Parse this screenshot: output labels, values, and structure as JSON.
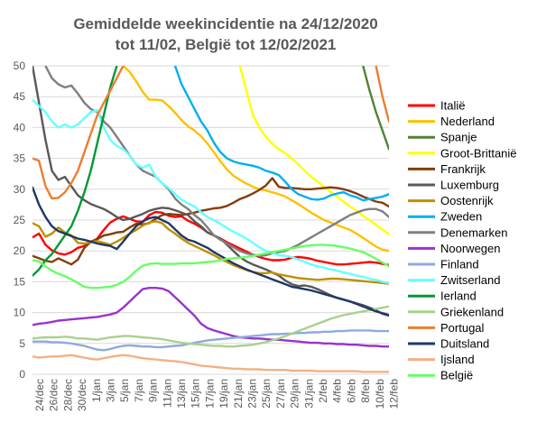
{
  "chart_data": {
    "type": "line",
    "title_line1": "Gemiddelde weekincidentie  na 24/12/2020",
    "title_line2": "tot 11/02, België tot 12/02/2021",
    "ylim": [
      0,
      50
    ],
    "y_ticks": [
      0,
      5,
      10,
      15,
      20,
      25,
      30,
      35,
      40,
      45,
      50
    ],
    "x_tick_labels": [
      "24/dec",
      "26/dec",
      "28/dec",
      "30/dec",
      "1/jan",
      "3/jan",
      "5/jan",
      "7/jan",
      "9/jan",
      "11/jan",
      "13/jan",
      "15/jan",
      "17/jan",
      "19/jan",
      "21/jan",
      "23/jan",
      "25/jan",
      "27/jan",
      "29/jan",
      "31/jan",
      "2/feb",
      "4/feb",
      "6/feb",
      "8/feb",
      "10/feb",
      "12/feb"
    ],
    "grid": "horizontal",
    "legend_position": "right",
    "series": [
      {
        "name": "Italië",
        "color": "#ff0000",
        "values": [
          22.2,
          22.8,
          21,
          20.1,
          19.6,
          19.4,
          19.8,
          20.5,
          20.8,
          21.4,
          22,
          23.4,
          24.6,
          25.2,
          25.6,
          25.2,
          24.8,
          24.7,
          25.8,
          26.3,
          26.2,
          25.7,
          25.5,
          25.6,
          24.9,
          24.4,
          23.8,
          23,
          22.5,
          22,
          21.4,
          20.9,
          20.4,
          19.9,
          19.4,
          19,
          18.7,
          18.5,
          18.5,
          18.6,
          18.9,
          19,
          18.9,
          18.7,
          18.4,
          18.2,
          18,
          17.8,
          17.8,
          17.9,
          18,
          18.1,
          18.2,
          18.1,
          17.9,
          17.7
        ]
      },
      {
        "name": "Nederland",
        "color": "#ffc000",
        "values": [
          null,
          null,
          null,
          null,
          null,
          null,
          null,
          null,
          null,
          null,
          null,
          null,
          null,
          null,
          50,
          49,
          47.5,
          45.8,
          44.5,
          44.5,
          44.4,
          43.5,
          42.4,
          41.2,
          40.2,
          39.5,
          38.6,
          37.4,
          36,
          34.5,
          33.2,
          32.2,
          31.5,
          30.9,
          30.4,
          30,
          29.8,
          29.5,
          29.2,
          28.8,
          28.2,
          27.6,
          26.9,
          26.2,
          25.6,
          25,
          24.6,
          24.2,
          23.8,
          23.4,
          22.8,
          22.1,
          21.4,
          20.7,
          20.2,
          20
        ]
      },
      {
        "name": "Spanje",
        "color": "#548235",
        "values": [
          null,
          null,
          null,
          null,
          null,
          null,
          null,
          null,
          null,
          null,
          null,
          null,
          null,
          null,
          null,
          null,
          null,
          null,
          null,
          null,
          null,
          null,
          null,
          null,
          null,
          null,
          null,
          null,
          null,
          null,
          null,
          null,
          null,
          null,
          null,
          null,
          null,
          null,
          null,
          null,
          null,
          null,
          null,
          null,
          null,
          null,
          null,
          null,
          null,
          null,
          null,
          50,
          46,
          42.5,
          39.5,
          36.5
        ]
      },
      {
        "name": "Groot-Brittanië",
        "color": "#ffff00",
        "values": [
          null,
          null,
          null,
          null,
          null,
          null,
          null,
          null,
          null,
          null,
          null,
          null,
          null,
          null,
          null,
          null,
          null,
          null,
          null,
          null,
          null,
          null,
          null,
          null,
          null,
          null,
          null,
          null,
          null,
          null,
          null,
          null,
          50,
          46,
          42,
          40,
          38.5,
          37.4,
          36.5,
          35.8,
          35,
          34,
          33,
          32,
          31.2,
          30.4,
          29.6,
          28.8,
          28,
          27.2,
          26.5,
          25.7,
          25,
          24.2,
          23.5,
          22.7
        ]
      },
      {
        "name": "Frankrijk",
        "color": "#843c0c",
        "values": [
          19.2,
          18.8,
          18.4,
          18.2,
          18.8,
          18.3,
          17.8,
          18.6,
          20.5,
          21.5,
          21.9,
          22.5,
          22.7,
          23,
          23.1,
          23.8,
          24.4,
          24.3,
          24.5,
          25.2,
          25.8,
          26,
          25.9,
          25.8,
          26,
          26.2,
          26.5,
          26.7,
          26.9,
          27,
          27.3,
          27.8,
          28.4,
          28.8,
          29.3,
          29.9,
          30.6,
          31.8,
          30.4,
          30.2,
          30.2,
          30.1,
          30,
          30,
          30.1,
          30.2,
          30.3,
          30.2,
          30,
          29.7,
          29.3,
          28.8,
          28.4,
          28,
          27.8,
          27.2
        ]
      },
      {
        "name": "Luxemburg",
        "color": "#595959",
        "values": [
          50,
          44,
          38,
          33,
          31.5,
          32,
          30.5,
          29,
          28.2,
          27.6,
          27.2,
          26.8,
          26.2,
          25.5,
          25,
          25.2,
          25.6,
          26,
          26.5,
          26.8,
          27,
          26.9,
          26.6,
          26.2,
          25.8,
          24.8,
          24,
          23,
          22.5,
          22,
          21,
          20,
          19,
          18.3,
          17.8,
          17.4,
          17,
          16.5,
          16,
          15.2,
          14.6,
          14.3,
          14.4,
          14.2,
          13.8,
          13.3,
          12.8,
          12.4,
          12.1,
          11.8,
          11.5,
          11.2,
          10.8,
          10.4,
          9.8,
          9.5
        ]
      },
      {
        "name": "Oostenrijk",
        "color": "#bf9000",
        "values": [
          24.5,
          24,
          22.3,
          22.8,
          23.8,
          23,
          22.5,
          21.3,
          21.2,
          21.4,
          21.6,
          21.3,
          21,
          21.5,
          22.1,
          22.8,
          23.4,
          24.1,
          24.6,
          24.8,
          24.5,
          23.5,
          22.8,
          22,
          21.3,
          20.8,
          20.3,
          19.8,
          19.3,
          18.7,
          18.2,
          17.7,
          17.3,
          16.9,
          16.6,
          16.4,
          16.4,
          16.5,
          16.2,
          16,
          15.8,
          15.6,
          15.5,
          15.4,
          15.3,
          15.4,
          15.5,
          15.5,
          15.4,
          15.3,
          15.2,
          15.1,
          15,
          14.9,
          14.8,
          14.7
        ]
      },
      {
        "name": "Zweden",
        "color": "#00b0f0",
        "values": [
          null,
          null,
          null,
          null,
          null,
          null,
          null,
          null,
          null,
          null,
          null,
          null,
          null,
          null,
          null,
          null,
          null,
          null,
          null,
          null,
          null,
          null,
          50,
          47,
          45,
          43,
          41,
          39.5,
          37.5,
          36,
          35,
          34.5,
          34.2,
          34,
          33.8,
          33.5,
          33,
          32.7,
          32.3,
          31.2,
          30,
          29.2,
          28.8,
          28.4,
          28.3,
          28.5,
          29,
          29.3,
          29.5,
          29,
          28.7,
          28.2,
          28.4,
          28.6,
          28.8,
          29.2
        ]
      },
      {
        "name": "Denemarken",
        "color": "#7f7f7f",
        "values": [
          null,
          null,
          50,
          48,
          47,
          46.5,
          46.8,
          45.5,
          44,
          43,
          42.5,
          41,
          40,
          38.5,
          37,
          35.5,
          34,
          33,
          32.5,
          32,
          31,
          30,
          28.5,
          27.5,
          26.8,
          25.8,
          25,
          23.8,
          22.5,
          21.8,
          21.2,
          20.6,
          20,
          19.6,
          19.4,
          19.2,
          19.3,
          19.6,
          19.8,
          20,
          20.5,
          21,
          21.6,
          22.2,
          22.8,
          23.4,
          24,
          24.6,
          25.2,
          25.8,
          26.2,
          26.6,
          26.8,
          26.8,
          26.4,
          25.5
        ]
      },
      {
        "name": "Noorwegen",
        "color": "#9933cc",
        "values": [
          8,
          8.2,
          8.3,
          8.5,
          8.7,
          8.8,
          8.9,
          9,
          9.1,
          9.2,
          9.3,
          9.5,
          9.7,
          10,
          10.8,
          11.8,
          12.8,
          13.8,
          14,
          14,
          13.9,
          13.5,
          12.5,
          11.5,
          10.5,
          9.5,
          8.2,
          7.5,
          7.1,
          6.8,
          6.5,
          6.2,
          6,
          5.9,
          5.8,
          5.8,
          5.7,
          5.6,
          5.6,
          5.5,
          5.4,
          5.3,
          5.2,
          5.1,
          5.1,
          5,
          5,
          4.9,
          4.9,
          4.8,
          4.8,
          4.7,
          4.6,
          4.6,
          4.5,
          4.5
        ]
      },
      {
        "name": "Finland",
        "color": "#8faadc",
        "values": [
          5.3,
          5.3,
          5.3,
          5.2,
          5.2,
          5.1,
          5,
          4.8,
          4.6,
          4.3,
          4,
          3.9,
          4.1,
          4.4,
          4.6,
          4.7,
          4.6,
          4.5,
          4.5,
          4.4,
          4.4,
          4.5,
          4.6,
          4.7,
          4.9,
          5.1,
          5.3,
          5.5,
          5.6,
          5.7,
          5.8,
          5.9,
          6,
          6.1,
          6.2,
          6.3,
          6.4,
          6.5,
          6.5,
          6.6,
          6.6,
          6.7,
          6.7,
          6.8,
          6.8,
          6.9,
          6.9,
          7,
          7,
          7.1,
          7.1,
          7.1,
          7.1,
          7,
          7,
          7
        ]
      },
      {
        "name": "Zwitserland",
        "color": "#66ffff",
        "values": [
          44.5,
          43.5,
          42.5,
          41,
          40,
          40.5,
          40,
          40.5,
          41.5,
          42.5,
          42.8,
          40,
          38,
          37,
          36.5,
          35.5,
          34,
          33.5,
          34,
          32,
          31,
          30.2,
          29.2,
          28.3,
          27.7,
          27.2,
          26.3,
          25.5,
          25,
          24.4,
          23.7,
          23.1,
          22.6,
          22,
          21.3,
          20.6,
          20,
          19.7,
          19.3,
          19.2,
          19,
          18.6,
          18.2,
          17.8,
          17.5,
          17.3,
          17,
          16.8,
          16.5,
          16.3,
          16,
          15.8,
          15.5,
          15.3,
          15,
          14.8
        ]
      },
      {
        "name": "Ierland",
        "color": "#009933",
        "values": [
          16,
          17,
          18.5,
          19.5,
          21,
          22.5,
          24,
          26.5,
          29.5,
          33,
          37.5,
          42,
          46.5,
          50,
          null,
          null,
          null,
          null,
          null,
          null,
          null,
          null,
          null,
          null,
          null,
          null,
          null,
          null,
          null,
          null,
          null,
          null,
          null,
          null,
          null,
          null,
          null,
          null,
          null,
          null,
          null,
          null,
          null,
          null,
          null,
          null,
          null,
          null,
          null,
          null,
          null,
          null,
          null,
          null,
          null,
          null
        ]
      },
      {
        "name": "Griekenland",
        "color": "#a9d18e",
        "values": [
          5.8,
          5.9,
          6,
          6,
          6,
          6.1,
          6,
          5.8,
          5.8,
          5.7,
          5.6,
          5.8,
          6,
          6.1,
          6.2,
          6.2,
          6.1,
          6,
          5.9,
          5.8,
          5.7,
          5.5,
          5.3,
          5.1,
          5,
          4.9,
          4.8,
          4.7,
          4.6,
          4.6,
          4.5,
          4.5,
          4.6,
          4.7,
          4.8,
          5,
          5.2,
          5.5,
          5.8,
          6.2,
          6.6,
          7,
          7.4,
          7.8,
          8.2,
          8.6,
          9,
          9.3,
          9.6,
          9.8,
          10,
          10.2,
          10.4,
          10.6,
          10.8,
          11
        ]
      },
      {
        "name": "Portugal",
        "color": "#ed7d31",
        "values": [
          35,
          34.6,
          30.5,
          28.5,
          28.6,
          29.5,
          31,
          33,
          36,
          39,
          42,
          44,
          46,
          48,
          50,
          null,
          null,
          null,
          null,
          null,
          null,
          null,
          null,
          null,
          null,
          null,
          null,
          null,
          null,
          null,
          null,
          null,
          null,
          null,
          null,
          null,
          null,
          null,
          null,
          null,
          null,
          null,
          null,
          null,
          null,
          null,
          null,
          null,
          null,
          null,
          null,
          null,
          null,
          50,
          45,
          41
        ]
      },
      {
        "name": "Duitsland",
        "color": "#1f3864",
        "values": [
          30.3,
          27.5,
          25.5,
          24,
          23.2,
          22.8,
          22.4,
          22,
          21.8,
          21.5,
          21.2,
          21,
          20.8,
          20.3,
          21.5,
          22.8,
          24,
          24.8,
          25.3,
          25.5,
          25,
          24.5,
          23.5,
          22.5,
          21.8,
          21.5,
          21,
          20.5,
          19.8,
          19.2,
          18.6,
          18,
          17.5,
          17,
          16.6,
          16.2,
          15.8,
          15.4,
          15,
          14.6,
          14.2,
          14,
          13.8,
          13.6,
          13.3,
          13,
          12.7,
          12.4,
          12.1,
          11.8,
          11.4,
          11,
          10.6,
          10.2,
          9.9,
          9.6
        ]
      },
      {
        "name": "Ijsland",
        "color": "#f4b183",
        "values": [
          2.9,
          2.7,
          2.8,
          2.9,
          2.9,
          3,
          3.1,
          2.9,
          2.7,
          2.5,
          2.4,
          2.6,
          2.8,
          3,
          3.1,
          3,
          2.8,
          2.6,
          2.5,
          2.4,
          2.3,
          2.2,
          2.1,
          2,
          1.8,
          1.6,
          1.4,
          1.3,
          1.2,
          1.1,
          1,
          0.9,
          0.9,
          0.8,
          0.8,
          0.8,
          0.7,
          0.7,
          0.7,
          0.7,
          0.6,
          0.6,
          0.6,
          0.6,
          0.5,
          0.5,
          0.5,
          0.5,
          0.5,
          0.5,
          0.5,
          0.4,
          0.4,
          0.4,
          0.4,
          0.4
        ]
      },
      {
        "name": "België",
        "color": "#66ff66",
        "values": [
          18.5,
          18.3,
          17.5,
          16.8,
          16.3,
          15.9,
          15.4,
          14.8,
          14.2,
          14,
          14,
          14.1,
          14.2,
          14.5,
          15,
          15.8,
          16.8,
          17.6,
          17.9,
          18,
          17.9,
          17.9,
          17.9,
          18,
          18,
          18,
          18.1,
          18.2,
          18.3,
          18.5,
          18.7,
          18.8,
          18.9,
          19,
          19.2,
          19.4,
          19.6,
          19.8,
          20,
          20.2,
          20.4,
          20.6,
          20.8,
          20.9,
          21,
          21,
          20.9,
          20.8,
          20.6,
          20.4,
          20.1,
          19.8,
          19.3,
          18.7,
          18.1,
          17.5
        ]
      }
    ]
  }
}
